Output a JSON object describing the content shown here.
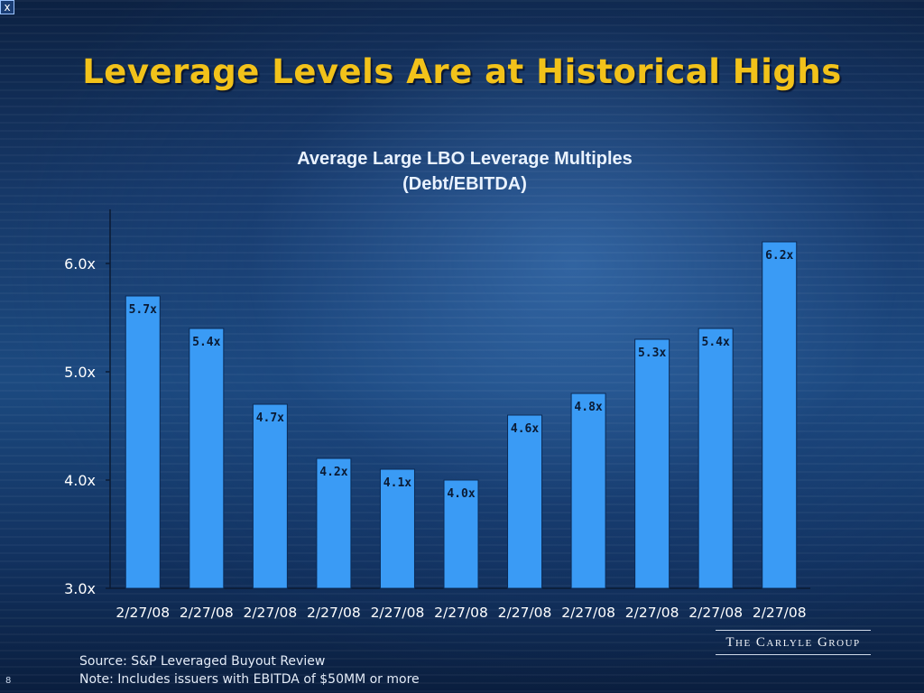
{
  "slide": {
    "close_label": "x",
    "title": "Leverage Levels Are at Historical Highs",
    "page_number": "8",
    "source": "Source: S&P Leveraged Buyout Review",
    "note": "Note: Includes issuers with EBITDA of $50MM or more",
    "logo": "The Carlyle Group"
  },
  "chart_data": {
    "type": "bar",
    "title_line1": "Average Large LBO Leverage Multiples",
    "title_line2": "(Debt/EBITDA)",
    "categories": [
      "2/27/08",
      "2/27/08",
      "2/27/08",
      "2/27/08",
      "2/27/08",
      "2/27/08",
      "2/27/08",
      "2/27/08",
      "2/27/08",
      "2/27/08",
      "2/27/08"
    ],
    "values": [
      5.7,
      5.4,
      4.7,
      4.2,
      4.1,
      4.0,
      4.6,
      4.8,
      5.3,
      5.4,
      6.2
    ],
    "data_labels": [
      "5.7x",
      "5.4x",
      "4.7x",
      "4.2x",
      "4.1x",
      "4.0x",
      "4.6x",
      "4.8x",
      "5.3x",
      "5.4x",
      "6.2x"
    ],
    "ylim": [
      3.0,
      6.5
    ],
    "yticks": [
      3.0,
      4.0,
      5.0,
      6.0
    ],
    "ytick_labels": [
      "3.0x",
      "4.0x",
      "5.0x",
      "6.0x"
    ],
    "grid": false,
    "legend": "none",
    "colors": {
      "bar": "#3a9bf5",
      "bar_edge": "#0b2a55",
      "label": "#0a1a33",
      "axis_text": "#ffffff"
    }
  }
}
